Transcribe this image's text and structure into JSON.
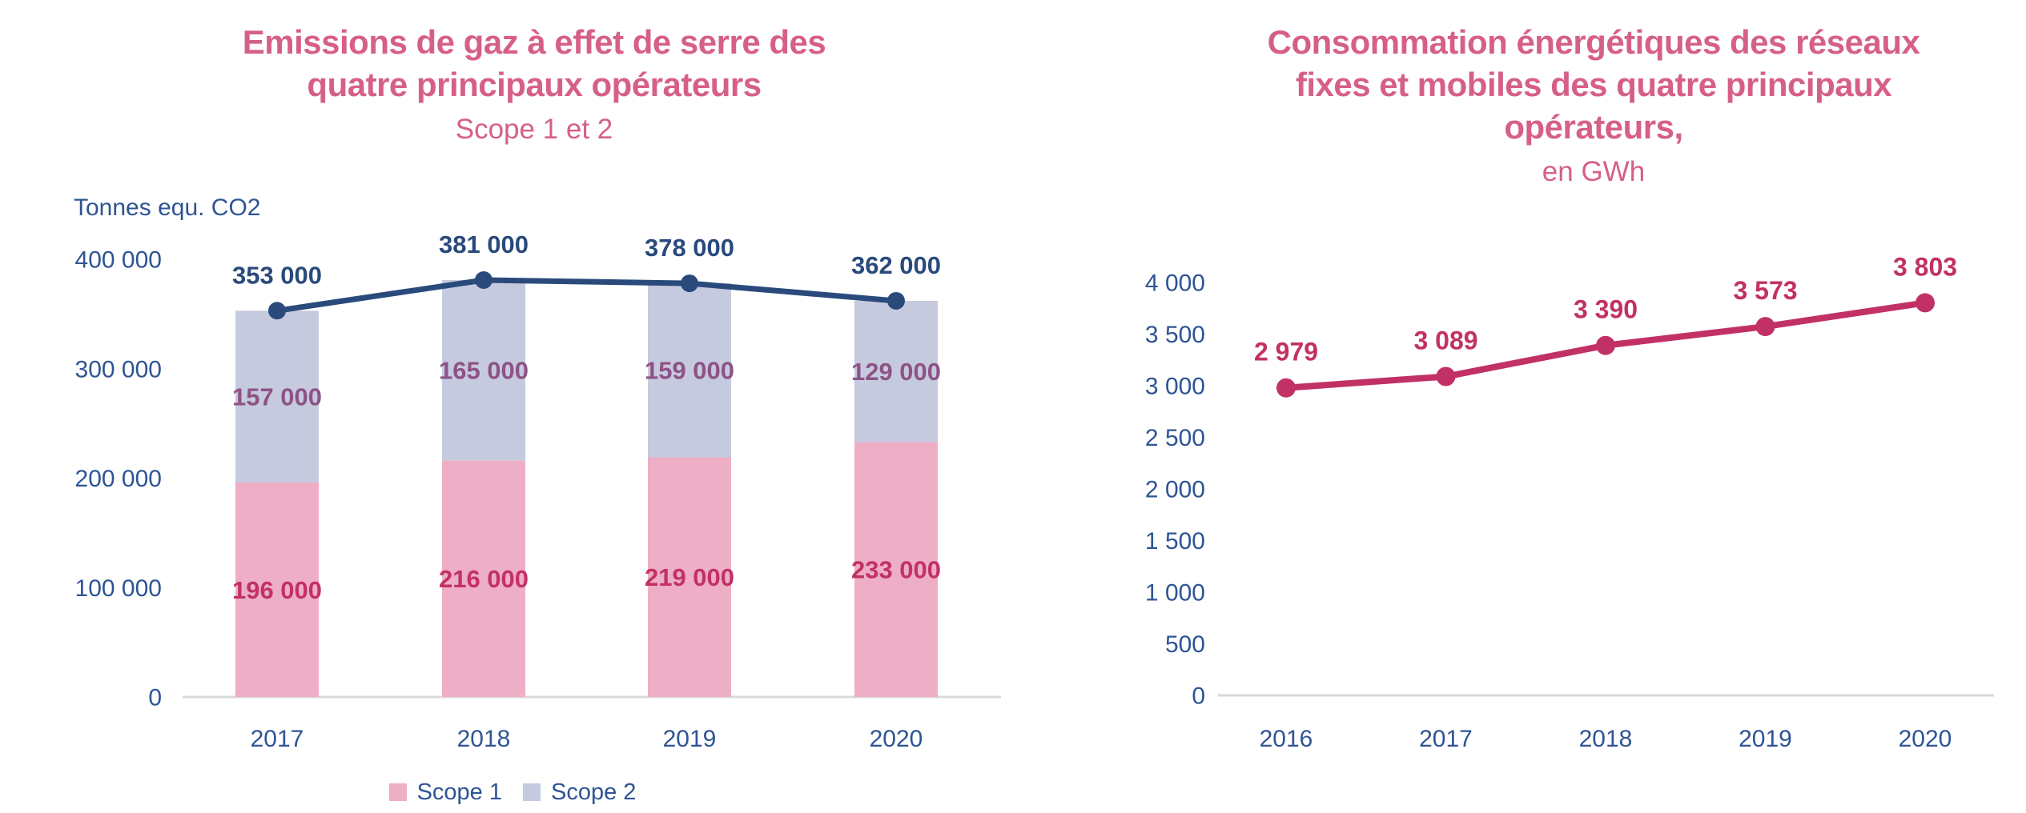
{
  "colors": {
    "title_pink": "#D65F8A",
    "axis_text_blue": "#2E5494",
    "total_navy": "#2A4A7C",
    "value_crimson": "#C23165",
    "value_plum": "#8D5386",
    "scope1_pink": "#EDAEC6",
    "scope2_lavender": "#C6CADF",
    "axis_line_gray": "#D9D9D9"
  },
  "chart_data": [
    {
      "type": "bar",
      "stacked": true,
      "title_lines": [
        "Emissions de gaz à effet de serre des",
        "quatre principaux opérateurs"
      ],
      "subtitle": "Scope 1 et 2",
      "unit_label": "Tonnes equ. CO2",
      "categories": [
        "2017",
        "2018",
        "2019",
        "2020"
      ],
      "series": [
        {
          "name": "Scope 1",
          "color_key": "scope1_pink",
          "label_color_key": "value_crimson",
          "values": [
            196000,
            216000,
            219000,
            233000
          ],
          "labels": [
            "196 000",
            "216 000",
            "219 000",
            "233 000"
          ]
        },
        {
          "name": "Scope 2",
          "color_key": "scope2_lavender",
          "label_color_key": "value_plum",
          "values": [
            157000,
            165000,
            159000,
            129000
          ],
          "labels": [
            "157 000",
            "165 000",
            "159 000",
            "129 000"
          ]
        }
      ],
      "total_line": {
        "color_key": "total_navy",
        "values": [
          353000,
          381000,
          378000,
          362000
        ],
        "labels": [
          "353 000",
          "381 000",
          "378 000",
          "362 000"
        ]
      },
      "ylim": [
        0,
        400000
      ],
      "yticks": [
        {
          "value": 0,
          "label": "0"
        },
        {
          "value": 100000,
          "label": "100 000"
        },
        {
          "value": 200000,
          "label": "200 000"
        },
        {
          "value": 300000,
          "label": "300 000"
        },
        {
          "value": 400000,
          "label": "400 000"
        }
      ],
      "grid": false,
      "legend_position": "bottom"
    },
    {
      "type": "line",
      "title_lines": [
        "Consommation énergétiques des réseaux",
        "fixes et mobiles des quatre principaux",
        "opérateurs,"
      ],
      "subtitle": "en GWh",
      "categories": [
        "2016",
        "2017",
        "2018",
        "2019",
        "2020"
      ],
      "values": [
        2979,
        3089,
        3390,
        3573,
        3803
      ],
      "labels": [
        "2 979",
        "3 089",
        "3 390",
        "3 573",
        "3 803"
      ],
      "line_color_key": "value_crimson",
      "label_color_key": "value_crimson",
      "ylim": [
        0,
        4000
      ],
      "yticks": [
        {
          "value": 0,
          "label": "0"
        },
        {
          "value": 500,
          "label": "500"
        },
        {
          "value": 1000,
          "label": "1 000"
        },
        {
          "value": 1500,
          "label": "1 500"
        },
        {
          "value": 2000,
          "label": "2 000"
        },
        {
          "value": 2500,
          "label": "2 500"
        },
        {
          "value": 3000,
          "label": "3 000"
        },
        {
          "value": 3500,
          "label": "3 500"
        },
        {
          "value": 4000,
          "label": "4 000"
        }
      ],
      "grid": false,
      "legend_position": "none"
    }
  ]
}
